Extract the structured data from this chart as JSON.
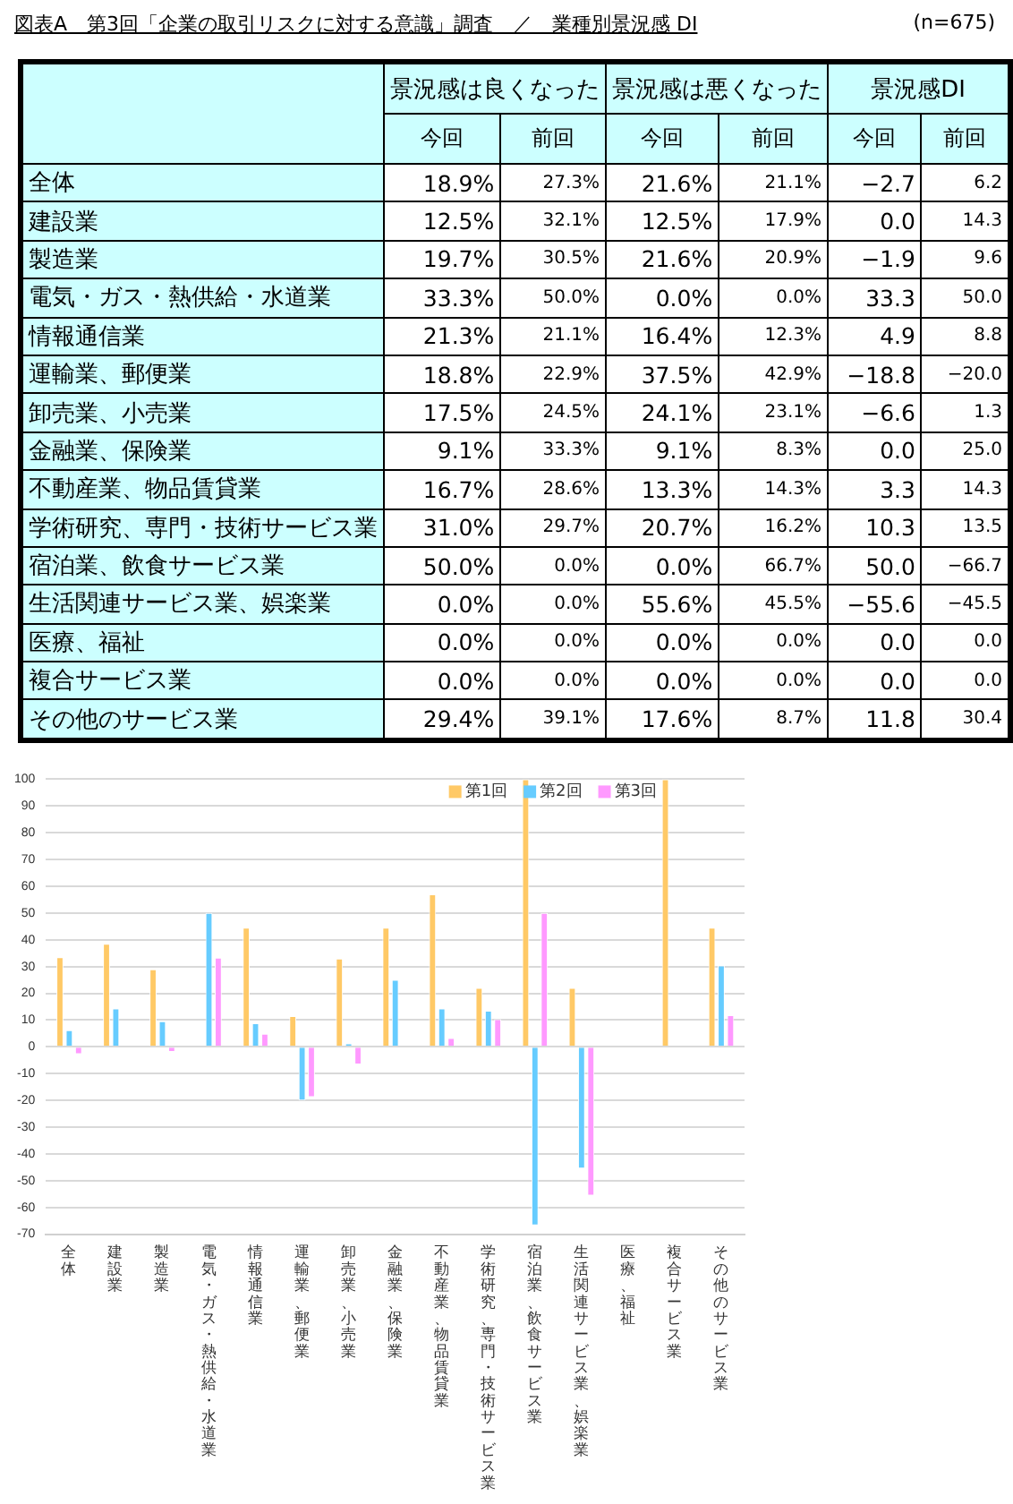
{
  "chart_data": [
    {
      "type": "other",
      "title": "図表A　第3回「企業の取引リスクに対する意識」調査　／　業種別景況感 DI",
      "annotations": [
        "(n=675)"
      ]
    },
    {
      "type": "heatmap",
      "annotations": [
        "景況感は良くなった",
        "景況感は悪くなった",
        "景況感DI"
      ],
      "categories": [
        "今回",
        "前回",
        "今回",
        "前回",
        "今回",
        "前回"
      ],
      "y_categories": [
        "全体",
        "建設業",
        "製造業",
        "電気・ガス・熱供給・水道業",
        "情報通信業",
        "運輸業、郵便業",
        "卸売業、小売業",
        "金融業、保険業",
        "不動産業、物品賃貸業",
        "学術研究、専門・技術サービス業",
        "宿泊業、飲食サービス業",
        "生活関連サービス業、娯楽業",
        "医療、福祉",
        "複合サービス業",
        "その他のサービス業"
      ],
      "cells": [
        [
          18.9,
          27.3,
          21.6,
          21.1,
          -2.7,
          6.2
        ],
        [
          12.5,
          32.1,
          12.5,
          17.9,
          0.0,
          14.3
        ],
        [
          19.7,
          30.5,
          21.6,
          20.9,
          -1.9,
          9.6
        ],
        [
          33.3,
          50.0,
          0.0,
          0.0,
          33.3,
          50.0
        ],
        [
          21.3,
          21.1,
          16.4,
          12.3,
          4.9,
          8.8
        ],
        [
          18.8,
          22.9,
          37.5,
          42.9,
          -18.8,
          -20.0
        ],
        [
          17.5,
          24.5,
          24.1,
          23.1,
          -6.6,
          1.3
        ],
        [
          9.1,
          33.3,
          9.1,
          8.3,
          0.0,
          25.0
        ],
        [
          16.7,
          28.6,
          13.3,
          14.3,
          3.3,
          14.3
        ],
        [
          31.0,
          29.7,
          20.7,
          16.2,
          10.3,
          13.5
        ],
        [
          50.0,
          0.0,
          0.0,
          66.7,
          50.0,
          -66.7
        ],
        [
          0.0,
          0.0,
          55.6,
          45.5,
          -55.6,
          -45.5
        ],
        [
          0.0,
          0.0,
          0.0,
          0.0,
          0.0,
          0.0
        ],
        [
          0.0,
          0.0,
          0.0,
          0.0,
          0.0,
          0.0
        ],
        [
          29.4,
          39.1,
          17.6,
          8.7,
          11.8,
          30.4
        ]
      ],
      "cell_labels": [
        [
          "18.9%",
          "27.3%",
          "21.6%",
          "21.1%",
          "−2.7",
          "6.2"
        ],
        [
          "12.5%",
          "32.1%",
          "12.5%",
          "17.9%",
          "0.0",
          "14.3"
        ],
        [
          "19.7%",
          "30.5%",
          "21.6%",
          "20.9%",
          "−1.9",
          "9.6"
        ],
        [
          "33.3%",
          "50.0%",
          "0.0%",
          "0.0%",
          "33.3",
          "50.0"
        ],
        [
          "21.3%",
          "21.1%",
          "16.4%",
          "12.3%",
          "4.9",
          "8.8"
        ],
        [
          "18.8%",
          "22.9%",
          "37.5%",
          "42.9%",
          "−18.8",
          "−20.0"
        ],
        [
          "17.5%",
          "24.5%",
          "24.1%",
          "23.1%",
          "−6.6",
          "1.3"
        ],
        [
          "9.1%",
          "33.3%",
          "9.1%",
          "8.3%",
          "0.0",
          "25.0"
        ],
        [
          "16.7%",
          "28.6%",
          "13.3%",
          "14.3%",
          "3.3",
          "14.3"
        ],
        [
          "31.0%",
          "29.7%",
          "20.7%",
          "16.2%",
          "10.3",
          "13.5"
        ],
        [
          "50.0%",
          "0.0%",
          "0.0%",
          "66.7%",
          "50.0",
          "−66.7"
        ],
        [
          "0.0%",
          "0.0%",
          "55.6%",
          "45.5%",
          "−55.6",
          "−45.5"
        ],
        [
          "0.0%",
          "0.0%",
          "0.0%",
          "0.0%",
          "0.0",
          "0.0"
        ],
        [
          "0.0%",
          "0.0%",
          "0.0%",
          "0.0%",
          "0.0",
          "0.0"
        ],
        [
          "29.4%",
          "39.1%",
          "17.6%",
          "8.7%",
          "11.8",
          "30.4"
        ]
      ]
    },
    {
      "type": "bar",
      "categories": [
        "全体",
        "建設業",
        "製造業",
        "電気・ガス・熱供給・水道業",
        "情報通信業",
        "運輸業、郵便業",
        "卸売業、小売業",
        "金融業、保険業",
        "不動産業、物品賃貸業",
        "学術研究、専門・技術サービス業",
        "宿泊業、飲食サービス業",
        "生活関連サービス業、娯楽業",
        "医療、福祉",
        "複合サービス業",
        "その他のサービス業"
      ],
      "series": [
        {
          "name": "第1回",
          "color": "#ffc966",
          "values": [
            33.5,
            38.5,
            29,
            0,
            44.5,
            11.5,
            33,
            44.5,
            57,
            22,
            100,
            22,
            0,
            100,
            44.5
          ]
        },
        {
          "name": "第2回",
          "color": "#66ccff",
          "values": [
            6.2,
            14.3,
            9.6,
            50.0,
            8.8,
            -20.0,
            1.3,
            25.0,
            14.3,
            13.5,
            -66.7,
            -45.5,
            0.0,
            0.0,
            30.4
          ]
        },
        {
          "name": "第3回",
          "color": "#ff99ff",
          "values": [
            -2.7,
            0.0,
            -1.9,
            33.3,
            4.9,
            -18.8,
            -6.6,
            0.0,
            3.3,
            10.3,
            50.0,
            -55.6,
            0.0,
            0.0,
            11.8
          ]
        }
      ],
      "ylim": [
        -70,
        100
      ],
      "yticks": [
        -70,
        -60,
        -50,
        -40,
        -30,
        -20,
        -10,
        0,
        10,
        20,
        30,
        40,
        50,
        60,
        70,
        80,
        90,
        100
      ],
      "grid": "y",
      "legend": "top right"
    }
  ]
}
